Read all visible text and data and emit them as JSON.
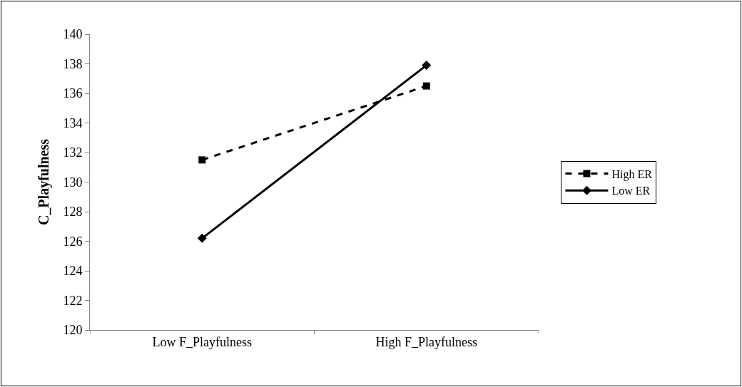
{
  "chart_data": {
    "type": "line",
    "ylabel": "C_Playfulness",
    "categories": [
      "Low F_Playfulness",
      "High F_Playfulness"
    ],
    "series": [
      {
        "name": "High ER",
        "color": "#000000",
        "values": [
          131.5,
          136.5
        ],
        "marker": "square",
        "line_style": "dashed"
      },
      {
        "name": "Low ER",
        "color": "#000000",
        "values": [
          126.2,
          137.9
        ],
        "marker": "diamond",
        "line_style": "solid"
      }
    ],
    "ylim": [
      120,
      140
    ],
    "yticks": [
      120,
      122,
      124,
      126,
      128,
      130,
      132,
      134,
      136,
      138,
      140
    ],
    "grid": false,
    "legend": "right"
  }
}
